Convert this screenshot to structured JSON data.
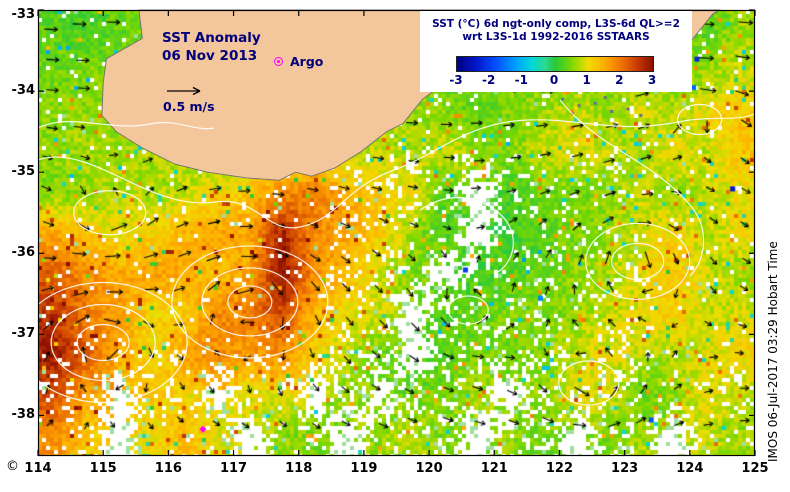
{
  "titles": {
    "main": "SST Anomaly",
    "date": "06 Nov 2013",
    "argo": "Argo",
    "speed_ref": "0.5 m/s",
    "copyright": "©",
    "attribution": "IMOS 06-Jul-2017 03:29 Hobart Time"
  },
  "legend": {
    "line1": "SST (°C) 6d ngt-only comp, L3S-6d QL>=2",
    "line2": "wrt L3S-1d 1992-2016 SSTAARS"
  },
  "colorbar": {
    "min": -3,
    "max": 3,
    "ticks": [
      "-3",
      "-2",
      "-1",
      "0",
      "1",
      "2",
      "3"
    ],
    "tick_values": [
      -3,
      -2,
      -1,
      0,
      1,
      2,
      3
    ],
    "stops": [
      {
        "v": -3.0,
        "c": "#000082"
      },
      {
        "v": -2.4,
        "c": "#0018C8"
      },
      {
        "v": -1.8,
        "c": "#0050FF"
      },
      {
        "v": -1.2,
        "c": "#00A0FF"
      },
      {
        "v": -0.7,
        "c": "#00D8D8"
      },
      {
        "v": -0.3,
        "c": "#2ED890"
      },
      {
        "v": 0.0,
        "c": "#28C83C"
      },
      {
        "v": 0.5,
        "c": "#7AD800"
      },
      {
        "v": 1.0,
        "c": "#F0DC00"
      },
      {
        "v": 1.5,
        "c": "#FFAE00"
      },
      {
        "v": 2.0,
        "c": "#F07800"
      },
      {
        "v": 2.5,
        "c": "#C83C00"
      },
      {
        "v": 3.0,
        "c": "#8B1000"
      }
    ]
  },
  "axes": {
    "x_ticks": [
      "114",
      "115",
      "116",
      "117",
      "118",
      "119",
      "120",
      "121",
      "122",
      "123",
      "124",
      "125"
    ],
    "x_values": [
      114,
      115,
      116,
      117,
      118,
      119,
      120,
      121,
      122,
      123,
      124,
      125
    ],
    "y_ticks": [
      "-33",
      "-34",
      "-35",
      "-36",
      "-37",
      "-38"
    ],
    "y_values": [
      -33,
      -34,
      -35,
      -36,
      -37,
      -38
    ],
    "lon_range": [
      114,
      125
    ],
    "lat_range": [
      -38.5,
      -33
    ]
  },
  "colors": {
    "navy": "#00007D",
    "land": "#F4C69B",
    "coast": "#707070",
    "magenta": "#FF00FF",
    "no_data": "#FFFFFF",
    "vector": "#000000",
    "contour": "#FFFFFF"
  },
  "land": {
    "coastline": [
      [
        115.55,
        -33.0
      ],
      [
        115.6,
        -33.35
      ],
      [
        115.05,
        -33.6
      ],
      [
        115.0,
        -33.9
      ],
      [
        114.98,
        -34.3
      ],
      [
        115.2,
        -34.5
      ],
      [
        115.6,
        -34.7
      ],
      [
        116.1,
        -34.9
      ],
      [
        116.6,
        -35.0
      ],
      [
        117.2,
        -35.07
      ],
      [
        117.7,
        -35.1
      ],
      [
        117.95,
        -35.0
      ],
      [
        118.2,
        -35.05
      ],
      [
        118.55,
        -34.95
      ],
      [
        118.95,
        -34.75
      ],
      [
        119.35,
        -34.5
      ],
      [
        119.6,
        -34.4
      ],
      [
        119.9,
        -34.1
      ],
      [
        120.15,
        -33.95
      ],
      [
        120.6,
        -33.9
      ],
      [
        121.1,
        -33.82
      ],
      [
        121.55,
        -33.9
      ],
      [
        121.95,
        -33.86
      ],
      [
        122.2,
        -34.0
      ],
      [
        122.65,
        -33.93
      ],
      [
        123.05,
        -34.0
      ],
      [
        123.35,
        -33.88
      ],
      [
        123.85,
        -33.62
      ],
      [
        124.05,
        -33.35
      ],
      [
        124.35,
        -33.05
      ],
      [
        124.45,
        -33.0
      ]
    ],
    "islands": [
      [
        122.05,
        -34.1
      ],
      [
        122.3,
        -34.18
      ],
      [
        122.55,
        -34.15
      ],
      [
        122.8,
        -34.25
      ],
      [
        123.05,
        -34.22
      ],
      [
        123.25,
        -34.3
      ],
      [
        122.2,
        -34.28
      ],
      [
        122.7,
        -34.08
      ]
    ]
  },
  "chart_data": {
    "type": "heatmap",
    "units": "°C anomaly",
    "lon_start": 114,
    "lat_start": -33,
    "cell_deg": 0.5,
    "no_data_value": -9,
    "rows": [
      [
        0.3,
        0.2,
        0.4,
        0.5,
        0.5,
        0.5,
        0.5,
        0.5,
        0.5,
        0.5,
        0.5,
        0.5,
        0.5,
        0.5,
        0.5,
        0.5,
        0.5,
        0.5,
        0.5,
        0.4,
        0.3,
        0.6
      ],
      [
        0.4,
        0.5,
        0.4,
        0.5,
        0.5,
        0.5,
        0.5,
        0.5,
        0.5,
        0.5,
        0.5,
        0.5,
        0.5,
        0.5,
        0.5,
        0.5,
        0.5,
        0.5,
        0.5,
        0.5,
        0.6,
        0.8
      ],
      [
        0.5,
        0.6,
        0.6,
        0.6,
        0.6,
        0.6,
        0.6,
        0.6,
        0.6,
        0.6,
        0.6,
        0.6,
        0.5,
        0.3,
        0.5,
        0.6,
        0.8,
        0.6,
        0.9,
        0.7,
        1.0,
        1.2
      ],
      [
        0.6,
        0.7,
        0.6,
        0.7,
        0.7,
        0.7,
        0.7,
        0.7,
        0.7,
        0.7,
        0.8,
        0.7,
        0.9,
        0.6,
        0.5,
        0.8,
        1.0,
        0.8,
        0.6,
        1.0,
        0.8,
        1.3
      ],
      [
        0.5,
        0.6,
        0.8,
        0.7,
        0.8,
        1.0,
        1.3,
        1.8,
        2.0,
        1.5,
        1.2,
        1.0,
        0.3,
        -9,
        0.2,
        0.5,
        0.4,
        0.6,
        0.8,
        0.6,
        0.8,
        1.0
      ],
      [
        1.5,
        1.2,
        1.0,
        1.1,
        1.4,
        1.6,
        1.5,
        2.8,
        1.8,
        1.6,
        1.2,
        0.6,
        0.3,
        -9,
        0.1,
        0.3,
        0.5,
        0.6,
        0.9,
        1.1,
        0.7,
        1.0
      ],
      [
        2.2,
        1.8,
        1.5,
        1.6,
        1.5,
        1.3,
        1.6,
        3.0,
        1.7,
        1.4,
        0.8,
        0.5,
        -9,
        0.2,
        0.3,
        0.4,
        0.6,
        0.7,
        0.9,
        1.3,
        0.9,
        0.6
      ],
      [
        2.6,
        1.9,
        1.7,
        1.1,
        1.2,
        1.8,
        2.0,
        2.4,
        1.4,
        1.0,
        0.9,
        -9,
        0.3,
        0.4,
        0.5,
        0.5,
        0.6,
        0.8,
        1.0,
        1.2,
        0.8,
        0.9
      ],
      [
        2.8,
        2.2,
        1.5,
        1.0,
        1.6,
        1.8,
        1.6,
        1.8,
        1.1,
        0.8,
        0.4,
        -9,
        0.3,
        0.5,
        0.4,
        0.6,
        0.8,
        1.0,
        0.8,
        0.7,
        0.9,
        1.1
      ],
      [
        2.4,
        1.6,
        -9,
        1.3,
        1.0,
        -9,
        0.9,
        1.0,
        -9,
        0.6,
        -9,
        0.4,
        0.5,
        0.7,
        -9,
        0.6,
        1.0,
        0.9,
        0.3,
        0.6,
        1.0,
        0.8
      ],
      [
        1.8,
        1.2,
        -9,
        1.0,
        1.4,
        1.0,
        -9,
        0.6,
        0.5,
        -9,
        0.6,
        0.8,
        0.5,
        -9,
        0.6,
        0.4,
        -9,
        0.5,
        0.7,
        -9,
        0.8,
        0.6
      ]
    ]
  },
  "flow": {
    "drift": [
      0.3,
      0.02
    ],
    "vortices": [
      {
        "lon": 115.0,
        "lat": -37.1,
        "s": 1.0,
        "dir": 1,
        "rings": [
          [
            26,
            18
          ],
          [
            52,
            38
          ],
          [
            84,
            60
          ]
        ]
      },
      {
        "lon": 117.25,
        "lat": -36.6,
        "s": 1.0,
        "dir": 1,
        "rings": [
          [
            22,
            16
          ],
          [
            48,
            34
          ],
          [
            78,
            56
          ]
        ]
      },
      {
        "lon": 123.2,
        "lat": -36.1,
        "s": 0.8,
        "dir": 1,
        "rings": [
          [
            26,
            18
          ],
          [
            52,
            38
          ]
        ]
      },
      {
        "lon": 122.45,
        "lat": -37.6,
        "s": 0.7,
        "dir": -1,
        "rings": [
          [
            30,
            22
          ]
        ]
      },
      {
        "lon": 115.1,
        "lat": -35.5,
        "s": 0.6,
        "dir": -1,
        "rings": [
          [
            36,
            22
          ]
        ]
      },
      {
        "lon": 120.6,
        "lat": -36.7,
        "s": 0.5,
        "dir": -1,
        "rings": [
          [
            20,
            14
          ]
        ]
      },
      {
        "lon": 124.15,
        "lat": -34.35,
        "s": 0.5,
        "dir": 1,
        "rings": [
          [
            22,
            15
          ]
        ]
      }
    ]
  },
  "specks": [
    {
      "lon": 124.1,
      "lat": -33.6,
      "v": -2.2
    },
    {
      "lon": 124.05,
      "lat": -33.95,
      "v": -1.6
    },
    {
      "lon": 120.55,
      "lat": -36.2,
      "v": -2.0
    },
    {
      "lon": 123.4,
      "lat": -38.05,
      "v": -1.8
    },
    {
      "lon": 124.65,
      "lat": -35.2,
      "v": -2.4
    },
    {
      "lon": 121.7,
      "lat": -36.55,
      "v": -1.4
    }
  ],
  "argo_positions": [
    {
      "lon": 116.53,
      "lat": -38.17
    }
  ]
}
